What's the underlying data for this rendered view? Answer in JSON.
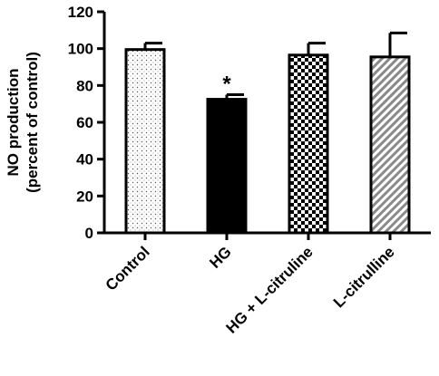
{
  "chart_data": {
    "type": "bar",
    "categories": [
      "Control",
      "HG",
      "HG + L-citruline",
      "L-citrulline"
    ],
    "values": [
      99.5,
      72.5,
      96.5,
      95.5
    ],
    "errors": [
      3.5,
      2.5,
      6.5,
      13.0
    ],
    "ylabel_line1": "NO production",
    "ylabel_line2": "(percent of control)",
    "xlabel": "",
    "ylim": [
      0,
      120
    ],
    "yticks": [
      0,
      20,
      40,
      60,
      80,
      100,
      120
    ],
    "grid": false,
    "annotations": [
      {
        "category": "HG",
        "text": "*"
      }
    ],
    "bar_fill_colors": [
      "#ffffff",
      "#000000",
      "#ffffff",
      "#ffffff"
    ],
    "bar_fill_patterns": [
      "fine-dots",
      "solid",
      "checker",
      "diagonal-hatch"
    ]
  }
}
